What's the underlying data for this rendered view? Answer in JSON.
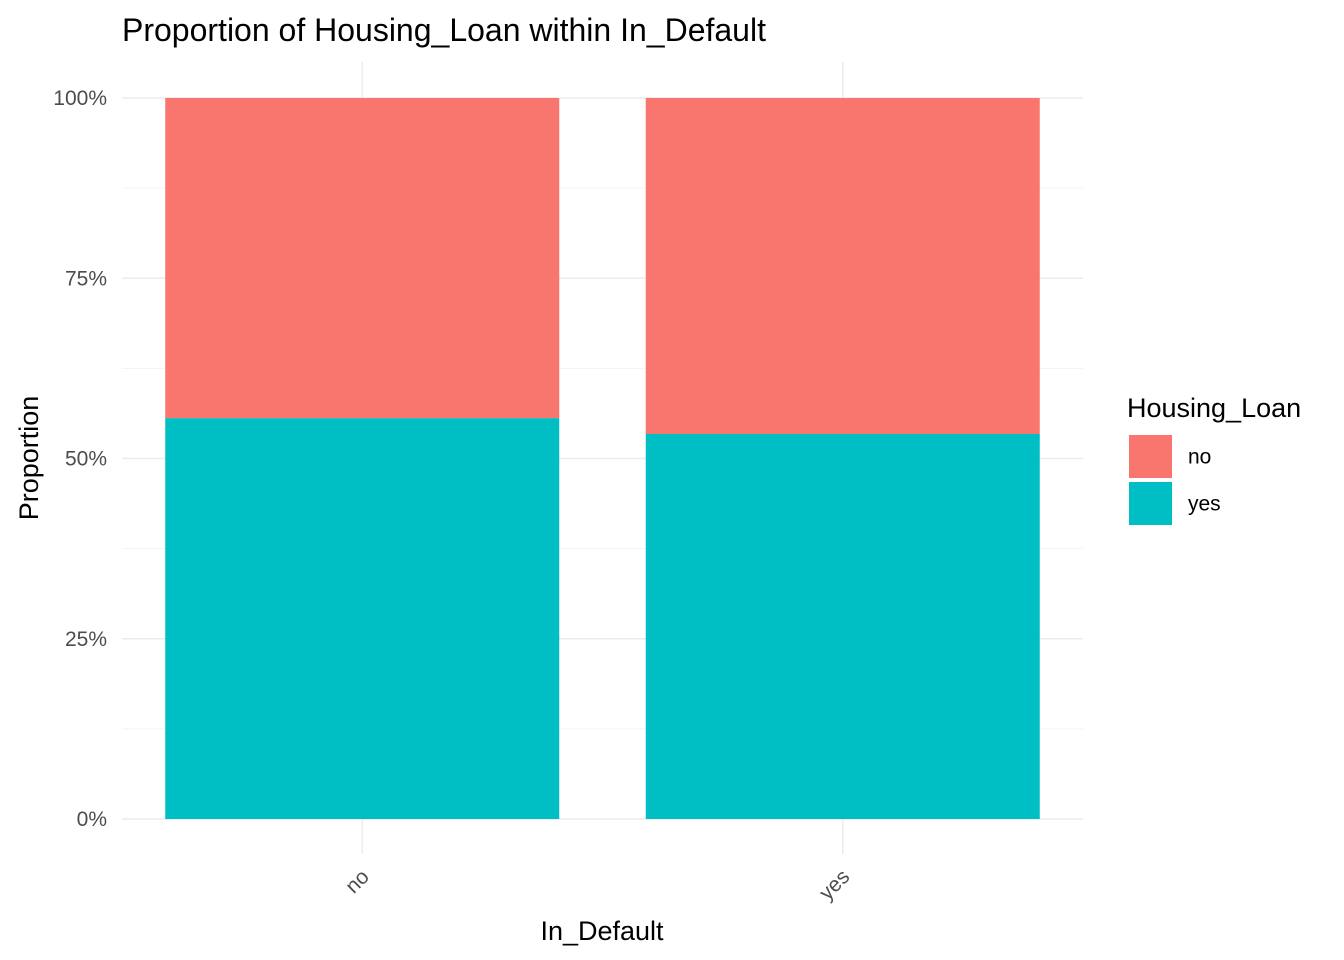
{
  "chart_data": {
    "type": "bar",
    "stacked": true,
    "title": "Proportion of Housing_Loan within In_Default",
    "xlabel": "In_Default",
    "ylabel": "Proportion",
    "categories": [
      "no",
      "yes"
    ],
    "series": [
      {
        "name": "no",
        "values": [
          0.444,
          0.466
        ],
        "color": "#F8766D"
      },
      {
        "name": "yes",
        "values": [
          0.556,
          0.534
        ],
        "color": "#00BFC4"
      }
    ],
    "stack_order_bottom_to_top": [
      "yes",
      "no"
    ],
    "ylim": [
      0,
      1
    ],
    "y_ticks": [
      0,
      0.25,
      0.5,
      0.75,
      1
    ],
    "y_tick_labels": [
      "0%",
      "25%",
      "50%",
      "75%",
      "100%"
    ],
    "x_tick_rotation": "45 degrees",
    "legend": {
      "title": "Housing_Loan",
      "position": "right",
      "entries": [
        "no",
        "yes"
      ]
    },
    "grid": true,
    "background": "#ffffff"
  }
}
